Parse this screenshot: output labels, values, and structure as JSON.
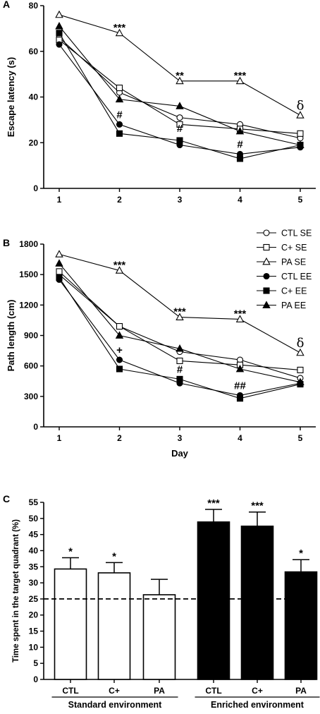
{
  "chart_data": [
    {
      "type": "line",
      "panel_label": "A",
      "ylabel": "Escape latency (s)",
      "xlabel": "",
      "x": [
        1,
        2,
        3,
        4,
        5
      ],
      "xticks": [
        "1",
        "2",
        "3",
        "4",
        "5"
      ],
      "ylim": [
        0,
        80
      ],
      "yticks": [
        "0",
        "20",
        "40",
        "60",
        "80"
      ],
      "series": [
        {
          "name": "CTL SE",
          "marker": "circle-open",
          "values": [
            66,
            42,
            31,
            28,
            22
          ]
        },
        {
          "name": "C+ SE",
          "marker": "square-open",
          "values": [
            65,
            44,
            28,
            26,
            24
          ]
        },
        {
          "name": "PA SE",
          "marker": "triangle-open",
          "values": [
            76,
            68,
            47,
            47,
            32
          ]
        },
        {
          "name": "CTL EE",
          "marker": "circle-filled",
          "values": [
            63,
            28,
            19,
            15,
            18
          ]
        },
        {
          "name": "C+ EE",
          "marker": "square-filled",
          "values": [
            68,
            24,
            21,
            13,
            19
          ]
        },
        {
          "name": "PA EE",
          "marker": "triangle-filled",
          "values": [
            71,
            39,
            36,
            25,
            19
          ]
        }
      ],
      "annotations": [
        {
          "x": 2,
          "y": 68,
          "text": "***",
          "kind": "star"
        },
        {
          "x": 3,
          "y": 47,
          "text": "**",
          "kind": "star"
        },
        {
          "x": 4,
          "y": 47,
          "text": "***",
          "kind": "star"
        },
        {
          "x": 5,
          "y": 32,
          "text": "δ",
          "kind": "delta"
        },
        {
          "x": 2,
          "y": 28,
          "text": "#",
          "kind": "hash"
        },
        {
          "x": 3,
          "y": 22,
          "text": "#",
          "kind": "hash"
        },
        {
          "x": 4,
          "y": 15,
          "text": "#",
          "kind": "hash"
        }
      ]
    },
    {
      "type": "line",
      "panel_label": "B",
      "ylabel": "Path length (cm)",
      "xlabel": "Day",
      "x": [
        1,
        2,
        3,
        4,
        5
      ],
      "xticks": [
        "1",
        "2",
        "3",
        "4",
        "5"
      ],
      "ylim": [
        0,
        1800
      ],
      "yticks": [
        "0",
        "300",
        "600",
        "900",
        "1200",
        "1500",
        "1800"
      ],
      "legend": "top-right",
      "series": [
        {
          "name": "CTL SE",
          "marker": "circle-open",
          "values": [
            1500,
            990,
            740,
            660,
            480
          ]
        },
        {
          "name": "C+ SE",
          "marker": "square-open",
          "values": [
            1530,
            990,
            650,
            610,
            560
          ]
        },
        {
          "name": "PA SE",
          "marker": "triangle-open",
          "values": [
            1700,
            1540,
            1080,
            1060,
            730
          ]
        },
        {
          "name": "CTL EE",
          "marker": "circle-filled",
          "values": [
            1450,
            660,
            430,
            310,
            430
          ]
        },
        {
          "name": "C+ EE",
          "marker": "square-filled",
          "values": [
            1470,
            570,
            470,
            280,
            420
          ]
        },
        {
          "name": "PA EE",
          "marker": "triangle-filled",
          "values": [
            1610,
            900,
            770,
            570,
            440
          ]
        }
      ],
      "annotations": [
        {
          "x": 2,
          "y": 1540,
          "text": "***",
          "kind": "star"
        },
        {
          "x": 3,
          "y": 1080,
          "text": "***",
          "kind": "star"
        },
        {
          "x": 4,
          "y": 1060,
          "text": "***",
          "kind": "star"
        },
        {
          "x": 5,
          "y": 730,
          "text": "δ",
          "kind": "delta"
        },
        {
          "x": 2,
          "y": 660,
          "text": "+",
          "kind": "hash"
        },
        {
          "x": 3,
          "y": 470,
          "text": "#",
          "kind": "hash"
        },
        {
          "x": 4,
          "y": 310,
          "text": "##",
          "kind": "hash"
        }
      ]
    },
    {
      "type": "bar",
      "panel_label": "C",
      "ylabel": "Time spent in the target quadrant (%)",
      "ylim": [
        0,
        55
      ],
      "yticks": [
        "0",
        "5",
        "10",
        "15",
        "20",
        "25",
        "30",
        "35",
        "40",
        "45",
        "50",
        "55"
      ],
      "reference_line": 25,
      "categories": [
        "CTL",
        "C+",
        "PA",
        "CTL",
        "C+",
        "PA"
      ],
      "values": [
        34.3,
        33.1,
        26.3,
        48.9,
        47.6,
        33.4
      ],
      "errors": [
        3.5,
        3.2,
        4.8,
        3.9,
        4.4,
        3.8
      ],
      "fill": [
        "white",
        "white",
        "white",
        "black",
        "black",
        "black"
      ],
      "stars": [
        "*",
        "*",
        "",
        "***",
        "***",
        "*"
      ],
      "groups": [
        {
          "label": "Standard environment",
          "members": [
            0,
            1,
            2
          ]
        },
        {
          "label": "Enriched environment",
          "members": [
            3,
            4,
            5
          ]
        }
      ]
    }
  ]
}
